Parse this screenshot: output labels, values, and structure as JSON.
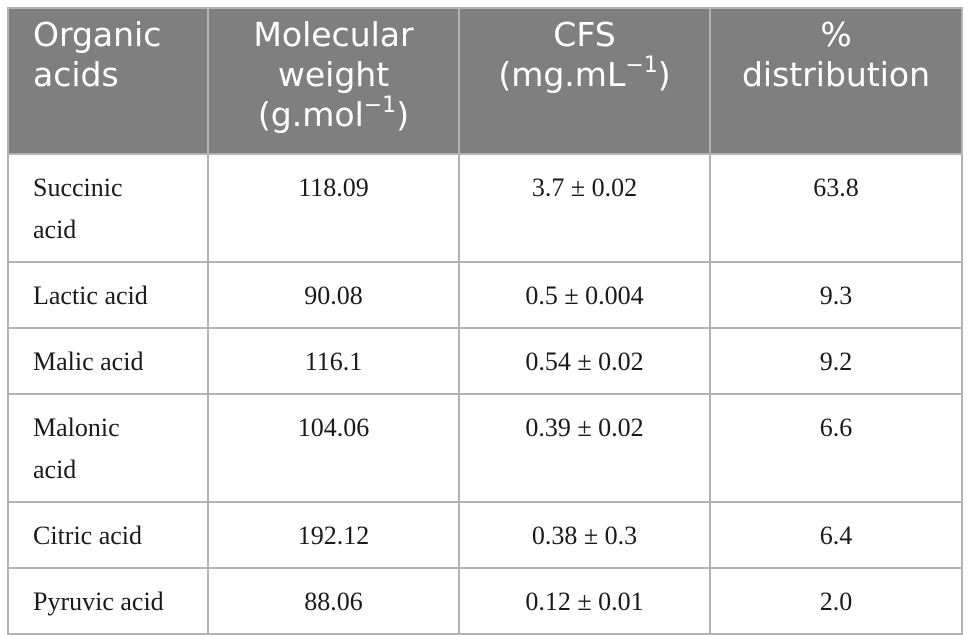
{
  "table": {
    "headers": [
      {
        "line1": "Organic",
        "line2": "acids",
        "line3": ""
      },
      {
        "line1": "Molecular",
        "line2": "weight",
        "line3": "(g.mol",
        "sup": "−1",
        "tail": ")"
      },
      {
        "line1": "CFS",
        "line2": "(mg.mL",
        "sup": "−1",
        "tail": ")"
      },
      {
        "line1": "%",
        "line2": "distribution"
      }
    ],
    "rows": [
      {
        "name": "Succinic acid",
        "mw": "118.09",
        "cfs": "3.7 ± 0.02",
        "dist": "63.8"
      },
      {
        "name": "Lactic acid",
        "mw": "90.08",
        "cfs": "0.5 ± 0.004",
        "dist": "9.3"
      },
      {
        "name": "Malic acid",
        "mw": "116.1",
        "cfs": "0.54 ± 0.02",
        "dist": "9.2"
      },
      {
        "name": "Malonic acid",
        "mw": "104.06",
        "cfs": "0.39 ± 0.02",
        "dist": "6.6"
      },
      {
        "name": "Citric acid",
        "mw": "192.12",
        "cfs": "0.38 ± 0.3",
        "dist": "6.4"
      },
      {
        "name": "Pyruvic acid",
        "mw": "88.06",
        "cfs": "0.12 ± 0.01",
        "dist": "2.0"
      }
    ]
  },
  "colors": {
    "header_bg": "#7f7f7f",
    "header_text": "#ffffff",
    "border": "#b3b3b3"
  }
}
